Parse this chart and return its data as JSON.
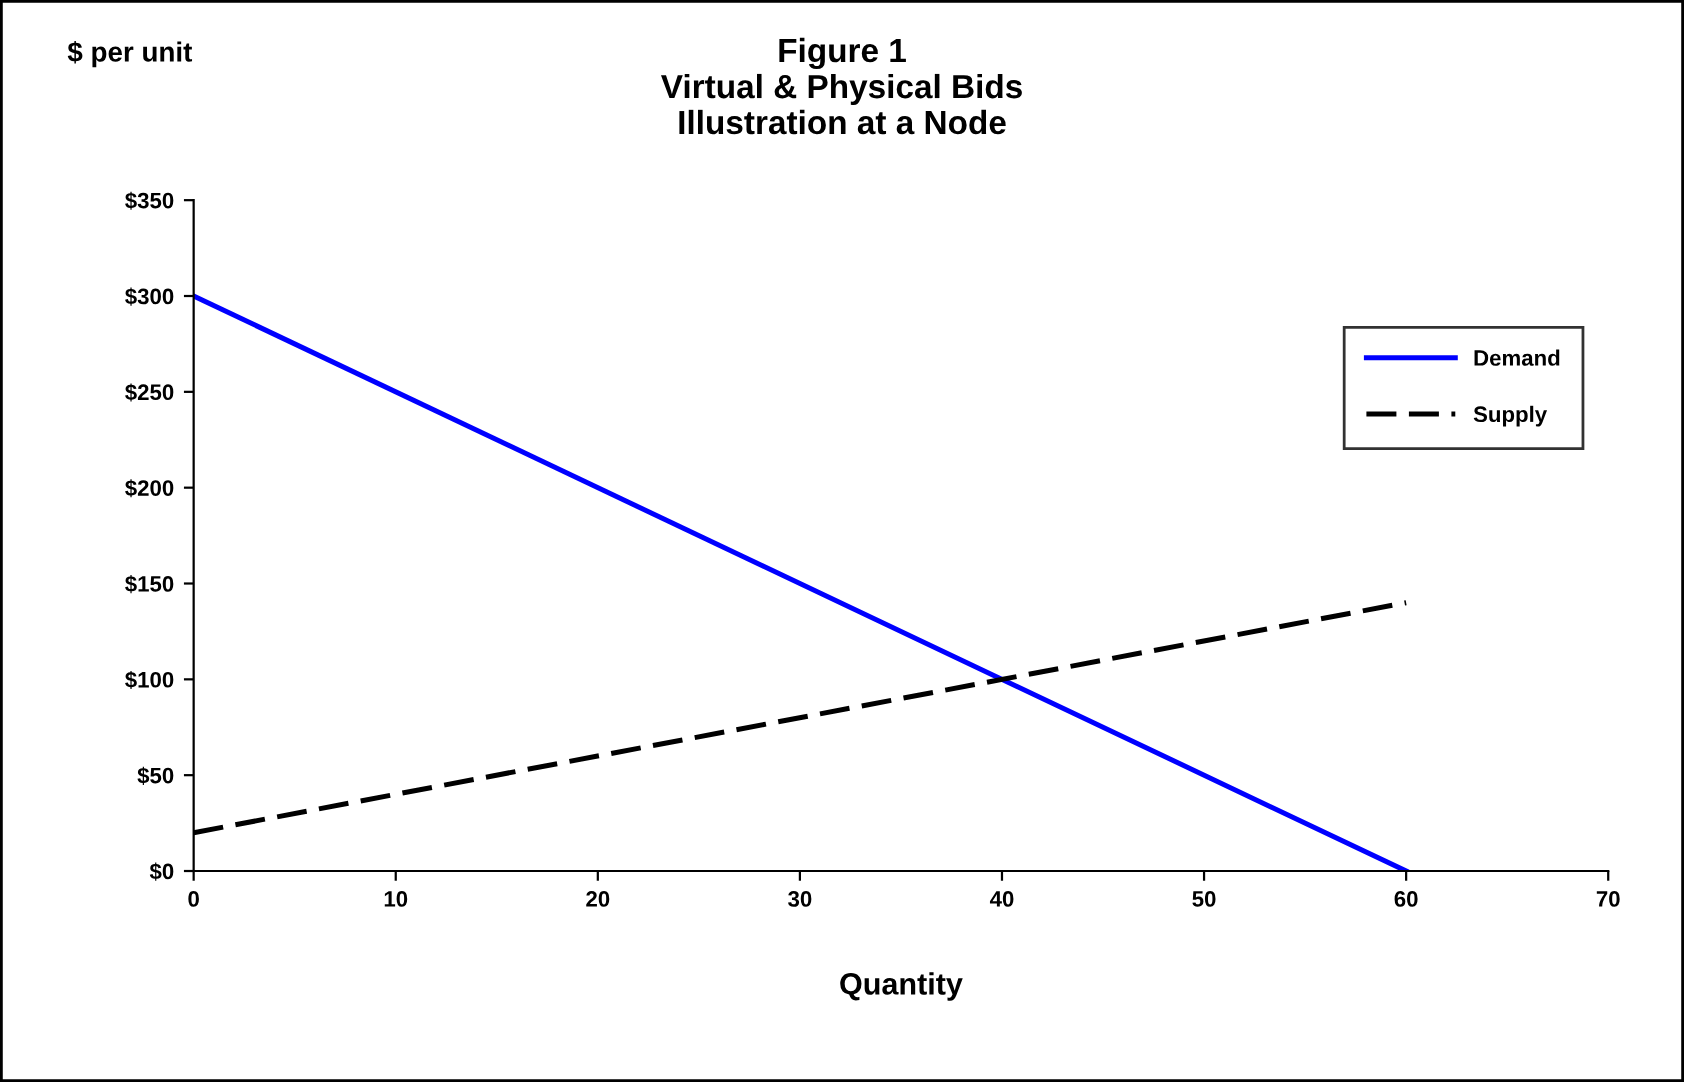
{
  "chart_data": {
    "type": "line",
    "title": "Figure 1\nVirtual & Physical Bids\nIllustration at a Node",
    "ylabel": "$ per unit",
    "xlabel": "Quantity",
    "series": [
      {
        "name": "Demand",
        "color": "#0000ff",
        "values": [
          300,
          0
        ],
        "line_style": "solid"
      },
      {
        "name": "Supply",
        "color": "#000000",
        "values": [
          20,
          140
        ],
        "line_style": "dashed"
      }
    ],
    "x": [
      0,
      60
    ],
    "xlim": [
      0,
      70
    ],
    "xticks": [
      0,
      10,
      20,
      30,
      40,
      50,
      60,
      70
    ],
    "ylim": [
      0,
      350
    ],
    "yticks": [
      {
        "value": 0,
        "label": "$0"
      },
      {
        "value": 50,
        "label": "$50"
      },
      {
        "value": 100,
        "label": "$100"
      },
      {
        "value": 150,
        "label": "$150"
      },
      {
        "value": 200,
        "label": "$200"
      },
      {
        "value": 250,
        "label": "$250"
      },
      {
        "value": 300,
        "label": "$300"
      },
      {
        "value": 350,
        "label": "$350"
      }
    ],
    "grid": false,
    "legend": "right",
    "marker": "none"
  }
}
